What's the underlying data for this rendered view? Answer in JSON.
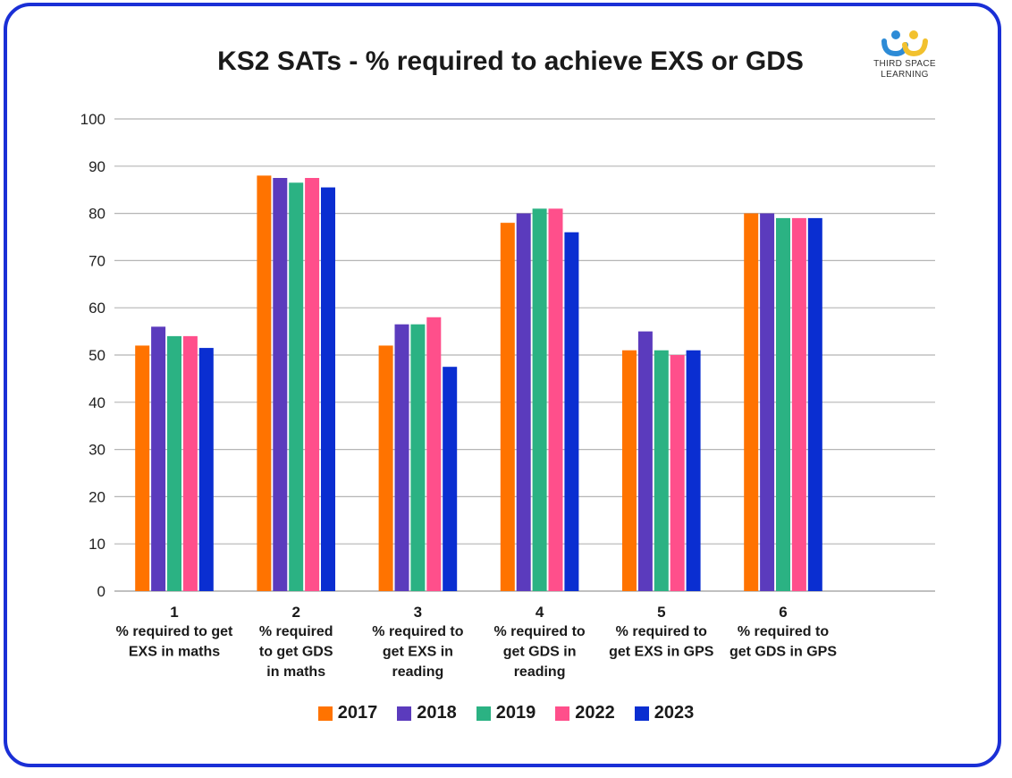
{
  "brand": {
    "name_line1": "THIRD SPACE",
    "name_line2": "LEARNING",
    "logo_colors": {
      "blue": "#2d8bd6",
      "yellow": "#f2c12e",
      "smile": "#2d8bd6"
    }
  },
  "frame_color": "#1a2fd6",
  "chart_data": {
    "type": "bar",
    "title": "KS2 SATs - % required to achieve EXS or GDS",
    "xlabel": "",
    "ylabel": "",
    "ylim": [
      0,
      100
    ],
    "yticks": [
      0,
      10,
      20,
      30,
      40,
      50,
      60,
      70,
      80,
      90,
      100
    ],
    "grid": true,
    "legend_position": "bottom",
    "categories": [
      {
        "number": "1",
        "lines": [
          "% required to get",
          "EXS in maths"
        ]
      },
      {
        "number": "2",
        "lines": [
          "% required",
          "to get GDS",
          "in maths"
        ]
      },
      {
        "number": "3",
        "lines": [
          "% required to",
          "get EXS in",
          "reading"
        ]
      },
      {
        "number": "4",
        "lines": [
          "% required to",
          "get GDS in",
          "reading"
        ]
      },
      {
        "number": "5",
        "lines": [
          "% required to",
          "get EXS in GPS"
        ]
      },
      {
        "number": "6",
        "lines": [
          "% required to",
          "get GDS in GPS"
        ]
      }
    ],
    "series": [
      {
        "name": "2017",
        "color": "#ff7300",
        "values": [
          52,
          88,
          52,
          78,
          51,
          80
        ]
      },
      {
        "name": "2018",
        "color": "#5b3bbd",
        "values": [
          56,
          87.5,
          56.5,
          80,
          55,
          80
        ]
      },
      {
        "name": "2019",
        "color": "#2bb283",
        "values": [
          54,
          86.5,
          56.5,
          81,
          51,
          79
        ]
      },
      {
        "name": "2022",
        "color": "#ff4f8b",
        "values": [
          54,
          87.5,
          58,
          81,
          50,
          79
        ]
      },
      {
        "name": "2023",
        "color": "#0a2ed1",
        "values": [
          51.5,
          85.5,
          47.5,
          76,
          51,
          79
        ]
      }
    ]
  }
}
